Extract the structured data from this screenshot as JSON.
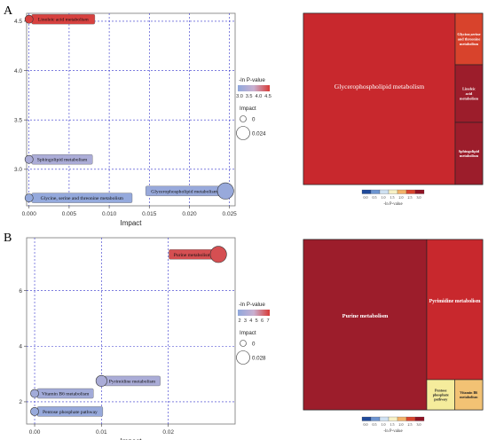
{
  "figure": {
    "panel_a_letter": "A",
    "panel_b_letter": "B"
  },
  "colors": {
    "low": "#8fa8dd",
    "mid": "#c9b0d0",
    "high": "#d83a36",
    "grid": "#3333cc",
    "treemap_darkred": "#9c1d2b",
    "treemap_red": "#c8282d",
    "treemap_orange": "#d8432c",
    "treemap_yellow": "#f5ec9c",
    "treemap_tan": "#f2c274"
  },
  "chart_data": [
    {
      "id": "A-bubble",
      "type": "scatter",
      "xlabel": "Impact",
      "ylabel": "",
      "xlim": [
        -0.0003,
        0.0257
      ],
      "ylim": [
        2.63,
        4.58
      ],
      "xticks": [
        "0.000",
        "0.005",
        "0.010",
        "0.015",
        "0.020",
        "0.025"
      ],
      "xtick_values": [
        0,
        0.005,
        0.01,
        0.015,
        0.02,
        0.025
      ],
      "yticks": [
        "3.0",
        "3.5",
        "4.0",
        "4.5"
      ],
      "ytick_values": [
        3.0,
        3.5,
        4.0,
        4.5
      ],
      "grid": true,
      "legend": {
        "color_title": "-ln P-value",
        "color_ticks": [
          "3.0",
          "3.5",
          "4.0",
          "4.5"
        ],
        "size_title": "Impact",
        "size_labels": [
          "0",
          "0.024"
        ]
      },
      "points": [
        {
          "label": "Linoleic acid metabolism",
          "x": 0.0,
          "y": 4.52,
          "impact": 0.0,
          "color_value": 4.52
        },
        {
          "label": "Sphingolipid metabolism",
          "x": 0.0,
          "y": 3.1,
          "impact": 0.0,
          "color_value": 3.1
        },
        {
          "label": "Glycine, serine and threonine metabolism",
          "x": 0.0,
          "y": 2.71,
          "impact": 0.0,
          "color_value": 2.71
        },
        {
          "label": "Glycerophospholipid metabolism",
          "x": 0.0245,
          "y": 2.78,
          "impact": 0.024,
          "color_value": 2.78
        }
      ]
    },
    {
      "id": "A-treemap",
      "type": "treemap",
      "items": [
        {
          "label": "Glycerophospholipid metabolism",
          "value": 0.78
        },
        {
          "label": "Glycine,serine and threonine metabolism",
          "value": 0.07
        },
        {
          "label": "Linoleic acid metabolism",
          "value": 0.08
        },
        {
          "label": "Sphingolipid metabolism",
          "value": 0.07
        }
      ],
      "legend": {
        "title": "-ln P-value",
        "ticks": [
          "0.0",
          "0.5",
          "1.0",
          "1.5",
          "2.0",
          "2.5",
          "3.0"
        ]
      }
    },
    {
      "id": "B-bubble",
      "type": "scatter",
      "xlabel": "Impact",
      "ylabel": "",
      "xlim": [
        -0.0012,
        0.03
      ],
      "ylim": [
        1.2,
        7.9
      ],
      "xticks": [
        "0.00",
        "0.01",
        "0.02"
      ],
      "xtick_values": [
        0,
        0.01,
        0.02
      ],
      "yticks": [
        "2",
        "4",
        "6"
      ],
      "ytick_values": [
        2,
        4,
        6
      ],
      "grid": true,
      "legend": {
        "color_title": "-ln P-value",
        "color_ticks": [
          "2",
          "3",
          "4",
          "5",
          "6",
          "7"
        ],
        "size_title": "Impact",
        "size_labels": [
          "0",
          "0.028"
        ]
      },
      "points": [
        {
          "label": "Purine metabolism",
          "x": 0.0275,
          "y": 7.3,
          "impact": 0.028,
          "color_value": 7.3
        },
        {
          "label": "Pyrimidine metabolism",
          "x": 0.01,
          "y": 2.75,
          "impact": 0.01,
          "color_value": 2.75
        },
        {
          "label": "Vitamin B6 metabolism",
          "x": 0.0,
          "y": 2.3,
          "impact": 0.0,
          "color_value": 2.3
        },
        {
          "label": "Pentose phosphate pathway",
          "x": 0.0,
          "y": 1.65,
          "impact": 0.0,
          "color_value": 1.65
        }
      ]
    },
    {
      "id": "B-treemap",
      "type": "treemap",
      "items": [
        {
          "label": "Purine metabolism",
          "value": 0.5
        },
        {
          "label": "Pyrimidine metabolism",
          "value": 0.36
        },
        {
          "label": "Pentose phosphate pathway",
          "value": 0.07
        },
        {
          "label": "Vitamin B6 metabolism",
          "value": 0.07
        }
      ],
      "legend": {
        "title": "-ln P-value",
        "ticks": [
          "0.0",
          "0.5",
          "1.0",
          "1.5",
          "2.0",
          "2.5",
          "3.0"
        ]
      }
    }
  ]
}
